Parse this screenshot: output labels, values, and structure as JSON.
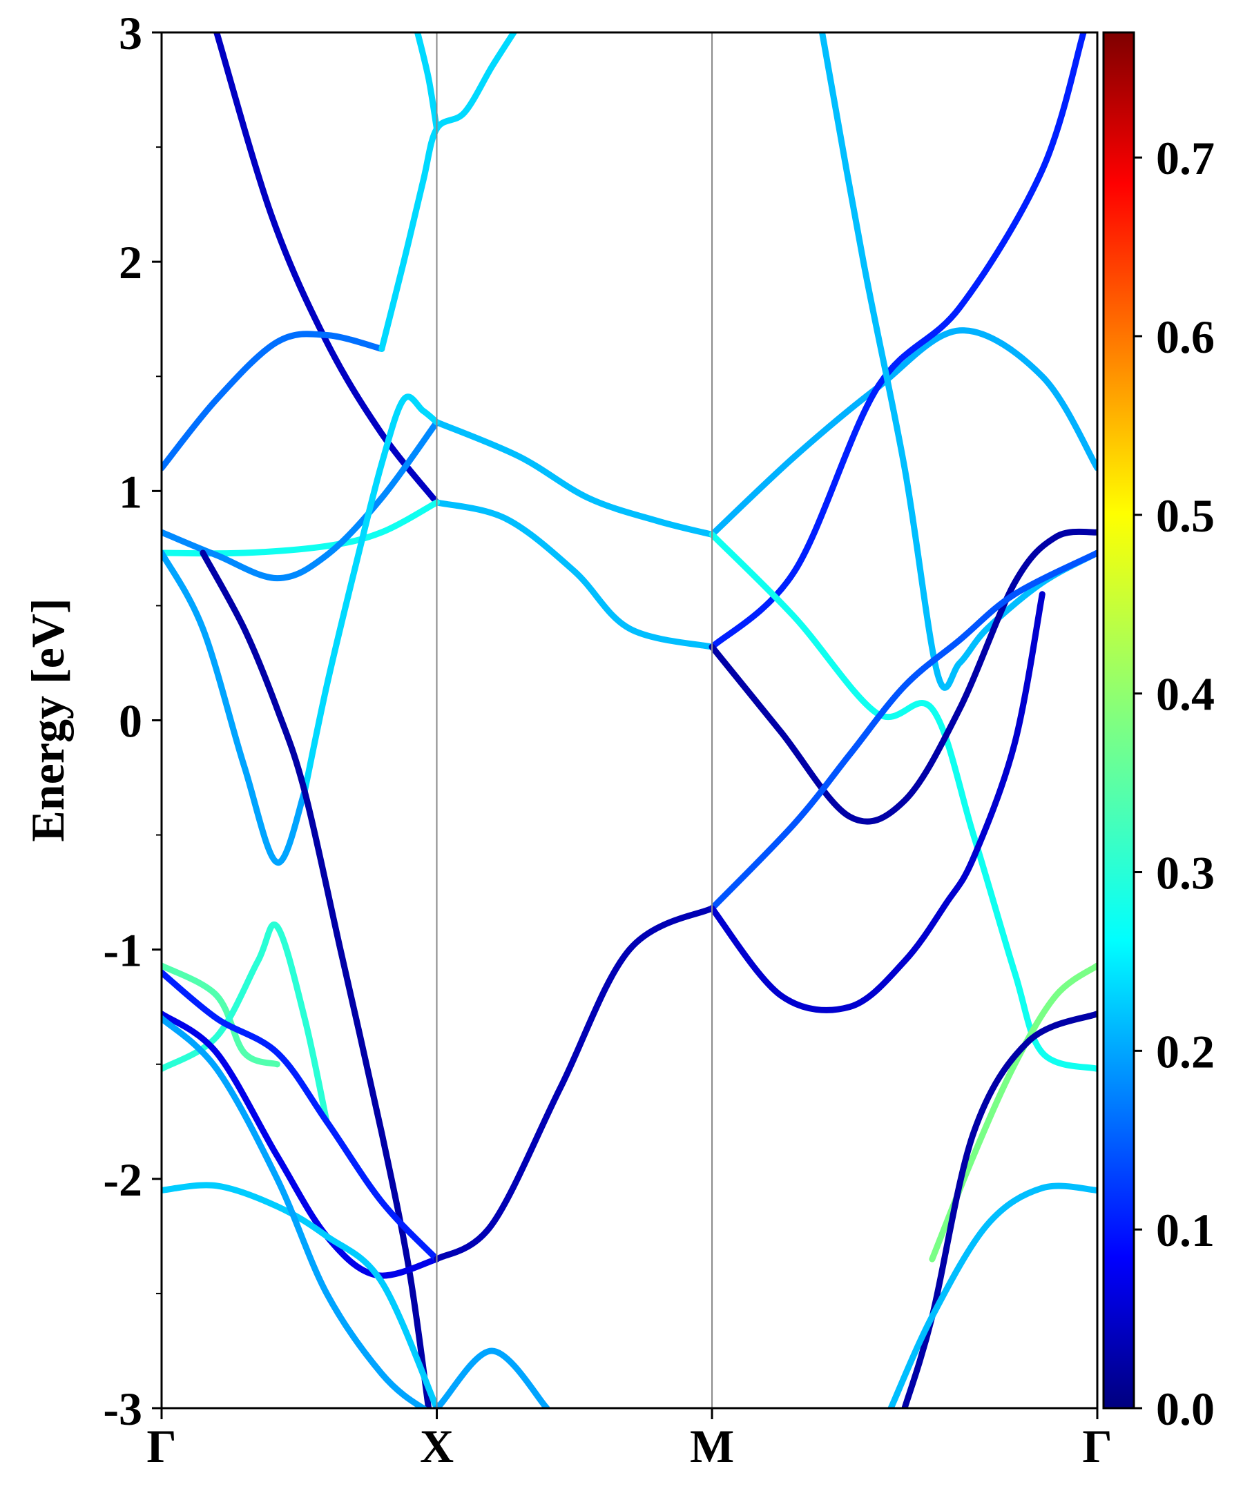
{
  "chart_data": {
    "type": "line",
    "ylabel": "Energy [eV]",
    "ylim": [
      -3,
      3
    ],
    "y_ticks": [
      -3,
      -2,
      -1,
      0,
      1,
      2,
      3
    ],
    "y_tick_labels": [
      "-3",
      "-2",
      "-1",
      "0",
      "1",
      "2",
      "3"
    ],
    "x_range": [
      0,
      3.4
    ],
    "k_points": [
      {
        "label": "Γ",
        "x": 0
      },
      {
        "label": "X",
        "x": 1
      },
      {
        "label": "M",
        "x": 2
      },
      {
        "label": "Γ",
        "x": 3.4
      }
    ],
    "colorbar": {
      "colormap": "jet",
      "range": [
        0,
        0.77
      ],
      "ticks": [
        0.0,
        0.1,
        0.2,
        0.3,
        0.4,
        0.5,
        0.6,
        0.7
      ],
      "tick_labels": [
        "0.0",
        "0.1",
        "0.2",
        "0.3",
        "0.4",
        "0.5",
        "0.6",
        "0.7"
      ]
    },
    "series": [
      {
        "weight": 0.05,
        "points": [
          [
            0.2,
            3.0
          ],
          [
            0.4,
            2.2
          ],
          [
            0.6,
            1.65
          ],
          [
            0.8,
            1.25
          ],
          [
            1.0,
            0.95
          ]
        ]
      },
      {
        "weight": 0.24,
        "points": [
          [
            1.0,
            0.95
          ],
          [
            1.25,
            0.88
          ],
          [
            1.5,
            0.65
          ],
          [
            1.7,
            0.4
          ],
          [
            2.0,
            0.32
          ]
        ]
      },
      {
        "weight": 0.18,
        "points": [
          [
            0.0,
            1.1
          ],
          [
            0.2,
            1.4
          ],
          [
            0.42,
            1.65
          ],
          [
            0.6,
            1.68
          ],
          [
            0.8,
            1.62
          ]
        ]
      },
      {
        "weight": 0.26,
        "points": [
          [
            0.8,
            1.62
          ],
          [
            0.88,
            2.0
          ],
          [
            0.95,
            2.35
          ],
          [
            1.0,
            2.58
          ],
          [
            1.1,
            2.65
          ],
          [
            1.2,
            2.85
          ],
          [
            1.28,
            3.0
          ]
        ]
      },
      {
        "weight": 0.26,
        "points": [
          [
            0.93,
            3.0
          ],
          [
            0.97,
            2.8
          ],
          [
            1.0,
            2.58
          ]
        ]
      },
      {
        "weight": 0.3,
        "points": [
          [
            0.0,
            0.73
          ],
          [
            0.3,
            0.73
          ],
          [
            0.6,
            0.76
          ],
          [
            0.8,
            0.82
          ],
          [
            1.0,
            0.95
          ]
        ]
      },
      {
        "weight": 0.24,
        "points": [
          [
            1.0,
            1.3
          ],
          [
            1.3,
            1.15
          ],
          [
            1.55,
            0.97
          ],
          [
            1.8,
            0.87
          ],
          [
            2.0,
            0.81
          ]
        ]
      },
      {
        "weight": 0.2,
        "points": [
          [
            0.0,
            0.82
          ],
          [
            0.2,
            0.72
          ],
          [
            0.42,
            0.62
          ],
          [
            0.6,
            0.72
          ],
          [
            0.8,
            0.97
          ],
          [
            1.0,
            1.3
          ]
        ]
      },
      {
        "weight": 0.26,
        "points": [
          [
            0.52,
            -0.31
          ],
          [
            0.6,
            0.15
          ],
          [
            0.7,
            0.65
          ],
          [
            0.8,
            1.12
          ],
          [
            0.88,
            1.4
          ],
          [
            0.95,
            1.35
          ],
          [
            1.0,
            1.3
          ]
        ]
      },
      {
        "weight": 0.22,
        "points": [
          [
            0.0,
            0.73
          ],
          [
            0.15,
            0.4
          ],
          [
            0.3,
            -0.2
          ],
          [
            0.42,
            -0.62
          ],
          [
            0.52,
            -0.31
          ]
        ]
      },
      {
        "weight": 0.03,
        "points": [
          [
            0.15,
            0.73
          ],
          [
            0.3,
            0.4
          ],
          [
            0.42,
            0.05
          ],
          [
            0.52,
            -0.31
          ],
          [
            0.65,
            -1.0
          ],
          [
            0.8,
            -1.8
          ],
          [
            0.9,
            -2.4
          ],
          [
            0.97,
            -3.0
          ]
        ]
      },
      {
        "weight": 0.35,
        "points": [
          [
            0.0,
            -1.07
          ],
          [
            0.2,
            -1.2
          ],
          [
            0.3,
            -1.45
          ],
          [
            0.42,
            -1.5
          ]
        ]
      },
      {
        "weight": 0.32,
        "points": [
          [
            0.0,
            -1.52
          ],
          [
            0.2,
            -1.38
          ],
          [
            0.35,
            -1.05
          ],
          [
            0.42,
            -0.9
          ],
          [
            0.52,
            -1.3
          ],
          [
            0.6,
            -1.75
          ]
        ]
      },
      {
        "weight": 0.08,
        "points": [
          [
            0.0,
            -1.28
          ],
          [
            0.2,
            -1.45
          ],
          [
            0.42,
            -1.9
          ],
          [
            0.6,
            -2.25
          ],
          [
            0.78,
            -2.42
          ],
          [
            1.0,
            -2.35
          ]
        ]
      },
      {
        "weight": 0.12,
        "points": [
          [
            0.0,
            -1.1
          ],
          [
            0.2,
            -1.3
          ],
          [
            0.42,
            -1.45
          ],
          [
            0.6,
            -1.75
          ],
          [
            0.8,
            -2.1
          ],
          [
            1.0,
            -2.35
          ]
        ]
      },
      {
        "weight": 0.04,
        "points": [
          [
            1.0,
            -2.35
          ],
          [
            1.2,
            -2.2
          ],
          [
            1.45,
            -1.6
          ],
          [
            1.7,
            -1.0
          ],
          [
            2.0,
            -0.82
          ]
        ]
      },
      {
        "weight": 0.25,
        "points": [
          [
            0.0,
            -2.05
          ],
          [
            0.2,
            -2.03
          ],
          [
            0.42,
            -2.12
          ],
          [
            0.6,
            -2.25
          ],
          [
            0.8,
            -2.45
          ],
          [
            1.0,
            -3.0
          ]
        ]
      },
      {
        "weight": 0.22,
        "points": [
          [
            0.0,
            -1.3
          ],
          [
            0.2,
            -1.52
          ],
          [
            0.42,
            -2.0
          ],
          [
            0.6,
            -2.5
          ],
          [
            0.8,
            -2.85
          ],
          [
            0.95,
            -3.0
          ],
          [
            1.0,
            -3.0
          ],
          [
            1.2,
            -2.75
          ],
          [
            1.4,
            -3.0
          ]
        ]
      },
      {
        "weight": 0.23,
        "points": [
          [
            2.0,
            0.81
          ],
          [
            2.3,
            1.15
          ],
          [
            2.6,
            1.45
          ],
          [
            2.9,
            1.7
          ],
          [
            3.2,
            1.5
          ],
          [
            3.4,
            1.1
          ]
        ]
      },
      {
        "weight": 0.12,
        "points": [
          [
            2.0,
            0.32
          ],
          [
            2.3,
            0.65
          ],
          [
            2.6,
            1.45
          ],
          [
            2.9,
            1.8
          ],
          [
            3.2,
            2.4
          ],
          [
            3.35,
            3.0
          ]
        ]
      },
      {
        "weight": 0.24,
        "points": [
          [
            2.4,
            3.0
          ],
          [
            2.55,
            2.0
          ],
          [
            2.7,
            1.1
          ],
          [
            2.82,
            0.2
          ],
          [
            2.9,
            0.25
          ],
          [
            3.0,
            0.4
          ],
          [
            3.2,
            0.6
          ],
          [
            3.4,
            0.73
          ]
        ]
      },
      {
        "weight": 0.3,
        "points": [
          [
            2.0,
            0.81
          ],
          [
            2.3,
            0.45
          ],
          [
            2.6,
            0.03
          ],
          [
            2.8,
            0.05
          ],
          [
            2.95,
            -0.5
          ],
          [
            3.1,
            -1.1
          ],
          [
            3.2,
            -1.45
          ],
          [
            3.4,
            -1.52
          ]
        ]
      },
      {
        "weight": 0.03,
        "points": [
          [
            2.0,
            0.32
          ],
          [
            2.25,
            -0.05
          ],
          [
            2.5,
            -0.42
          ],
          [
            2.7,
            -0.35
          ],
          [
            2.9,
            0.05
          ],
          [
            3.1,
            0.6
          ],
          [
            3.25,
            0.8
          ],
          [
            3.4,
            0.82
          ]
        ]
      },
      {
        "weight": 0.16,
        "points": [
          [
            2.0,
            -0.82
          ],
          [
            2.3,
            -0.45
          ],
          [
            2.5,
            -0.15
          ],
          [
            2.7,
            0.15
          ],
          [
            2.9,
            0.35
          ],
          [
            3.1,
            0.55
          ],
          [
            3.4,
            0.73
          ]
        ]
      },
      {
        "weight": 0.06,
        "points": [
          [
            2.0,
            -0.82
          ],
          [
            2.25,
            -1.2
          ],
          [
            2.5,
            -1.25
          ],
          [
            2.7,
            -1.05
          ],
          [
            2.85,
            -0.8
          ],
          [
            2.95,
            -0.6
          ],
          [
            3.1,
            -0.1
          ],
          [
            3.2,
            0.55
          ]
        ]
      },
      {
        "weight": 0.38,
        "points": [
          [
            3.4,
            -1.07
          ],
          [
            3.25,
            -1.2
          ],
          [
            3.1,
            -1.5
          ],
          [
            2.95,
            -1.9
          ],
          [
            2.8,
            -2.35
          ]
        ]
      },
      {
        "weight": 0.03,
        "points": [
          [
            3.4,
            -1.28
          ],
          [
            3.15,
            -1.4
          ],
          [
            2.95,
            -1.8
          ],
          [
            2.8,
            -2.6
          ],
          [
            2.7,
            -3.0
          ]
        ]
      },
      {
        "weight": 0.24,
        "points": [
          [
            3.4,
            -2.05
          ],
          [
            3.2,
            -2.04
          ],
          [
            3.0,
            -2.2
          ],
          [
            2.8,
            -2.6
          ],
          [
            2.65,
            -3.0
          ]
        ]
      }
    ]
  }
}
